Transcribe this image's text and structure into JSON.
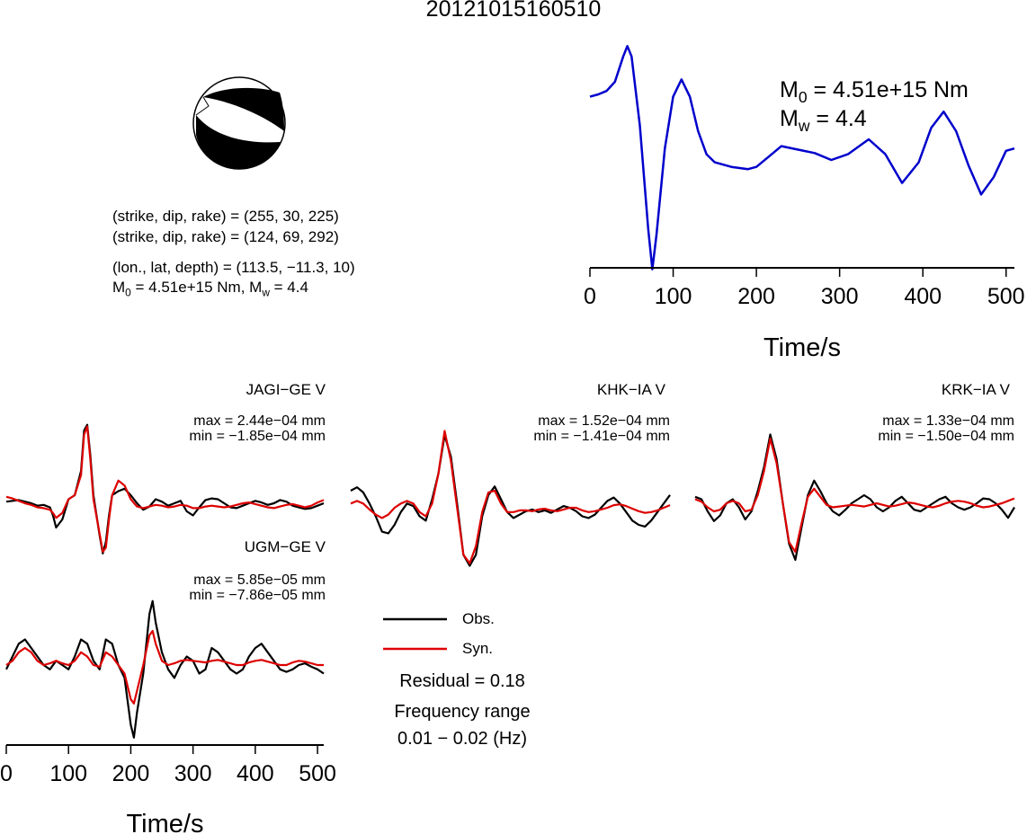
{
  "title": "20121015160510",
  "source_info": {
    "line1": "(strike, dip, rake) = (255, 30, 225)",
    "line2": "(strike, dip, rake) = (124, 69, 292)",
    "line3": "(lon., lat, depth) = (113.5, −11.3, 10)",
    "m0_label": "M",
    "m0_sub": "0",
    "m0_text": " = 4.51e+15 Nm, M",
    "mw_sub": "w",
    "mw_text": " = 4.4"
  },
  "stf_panel": {
    "m0_label": "M",
    "m0_sub": "0",
    "m0_value": " = 4.51e+15 Nm",
    "mw_label": "M",
    "mw_sub": "w",
    "mw_value": " = 4.4"
  },
  "legend": {
    "obs": "Obs.",
    "syn": "Syn.",
    "residual": "Residual = 0.18",
    "freq_label": "Frequency range",
    "freq_value": "0.01 − 0.02 (Hz)"
  },
  "colors": {
    "obs": "#000000",
    "syn": "#dd0000",
    "stf": "#0000cc",
    "beachball_fill": "#000000"
  },
  "chart_data": [
    {
      "type": "line",
      "name": "source-time-function",
      "xlabel": "Time/s",
      "xlim": [
        0,
        510
      ],
      "xticks": [
        0,
        100,
        200,
        300,
        400,
        500
      ],
      "x": [
        0,
        10,
        20,
        30,
        40,
        45,
        50,
        60,
        70,
        75,
        80,
        90,
        100,
        110,
        120,
        130,
        140,
        150,
        170,
        190,
        200,
        215,
        230,
        250,
        270,
        290,
        310,
        335,
        355,
        375,
        395,
        410,
        425,
        440,
        455,
        470,
        485,
        500,
        510
      ],
      "y": [
        0.55,
        0.57,
        0.6,
        0.68,
        0.9,
        0.99,
        0.9,
        0.3,
        -0.6,
        -0.95,
        -0.65,
        0.1,
        0.55,
        0.7,
        0.55,
        0.25,
        0.05,
        -0.02,
        -0.06,
        -0.08,
        -0.06,
        0.03,
        0.12,
        0.09,
        0.06,
        0.0,
        0.05,
        0.18,
        0.05,
        -0.2,
        -0.02,
        0.28,
        0.42,
        0.25,
        -0.05,
        -0.3,
        -0.15,
        0.08,
        0.1
      ]
    },
    {
      "type": "line",
      "station": "JAGI−GE V",
      "max": "max = 2.44e−04 mm",
      "min": "min = −1.85e−04 mm",
      "x": [
        0,
        10,
        20,
        30,
        40,
        50,
        60,
        70,
        75,
        80,
        90,
        100,
        110,
        120,
        125,
        130,
        135,
        140,
        150,
        155,
        160,
        165,
        170,
        180,
        190,
        200,
        210,
        220,
        230,
        240,
        250,
        260,
        270,
        280,
        290,
        300,
        310,
        320,
        330,
        340,
        350,
        360,
        370,
        380,
        390,
        400,
        410,
        420,
        430,
        440,
        450,
        460,
        470,
        480,
        490,
        500,
        510
      ],
      "series": [
        {
          "name": "Obs.",
          "values": [
            0.02,
            0.03,
            0.04,
            0.02,
            0.0,
            -0.03,
            -0.02,
            -0.05,
            -0.15,
            -0.3,
            -0.2,
            0.05,
            0.1,
            0.4,
            0.9,
            0.97,
            0.6,
            0.1,
            -0.4,
            -0.62,
            -0.48,
            -0.15,
            0.1,
            0.15,
            0.18,
            0.1,
            0.0,
            -0.08,
            -0.04,
            0.05,
            0.02,
            -0.03,
            0.0,
            0.03,
            -0.1,
            -0.15,
            -0.05,
            0.04,
            0.06,
            0.05,
            0.0,
            -0.05,
            -0.06,
            -0.03,
            0.0,
            0.03,
            0.01,
            -0.02,
            0.0,
            0.04,
            0.02,
            -0.03,
            -0.05,
            -0.07,
            -0.06,
            -0.03,
            0.0
          ]
        },
        {
          "name": "Syn.",
          "values": [
            0.08,
            0.06,
            0.03,
            0.0,
            -0.02,
            -0.05,
            -0.06,
            -0.08,
            -0.12,
            -0.18,
            -0.12,
            0.05,
            0.1,
            0.35,
            0.85,
            0.95,
            0.55,
            0.05,
            -0.38,
            -0.6,
            -0.55,
            -0.2,
            0.1,
            0.28,
            0.22,
            0.05,
            -0.04,
            -0.06,
            -0.04,
            -0.02,
            -0.03,
            -0.05,
            -0.04,
            -0.02,
            -0.03,
            -0.06,
            -0.06,
            -0.04,
            -0.03,
            -0.04,
            -0.05,
            -0.04,
            -0.02,
            0.0,
            0.01,
            -0.01,
            -0.03,
            -0.05,
            -0.06,
            -0.04,
            -0.02,
            -0.01,
            -0.03,
            -0.05,
            -0.03,
            0.01,
            0.04
          ]
        }
      ]
    },
    {
      "type": "line",
      "station": "KHK−IA V",
      "max": "max = 1.52e−04 mm",
      "min": "min = −1.41e−04 mm",
      "x": [
        0,
        10,
        20,
        30,
        40,
        50,
        60,
        70,
        80,
        90,
        100,
        110,
        120,
        130,
        140,
        150,
        160,
        170,
        180,
        190,
        200,
        210,
        220,
        230,
        240,
        250,
        260,
        270,
        280,
        290,
        300,
        310,
        320,
        330,
        340,
        350,
        360,
        370,
        380,
        390,
        400,
        410,
        420,
        430,
        440,
        450,
        460,
        470,
        480,
        490,
        500,
        510
      ],
      "series": [
        {
          "name": "Obs.",
          "values": [
            0.2,
            0.24,
            0.18,
            0.05,
            -0.1,
            -0.28,
            -0.3,
            -0.2,
            -0.05,
            0.05,
            0.02,
            -0.1,
            -0.15,
            0.1,
            0.4,
            0.85,
            0.6,
            0.05,
            -0.55,
            -0.68,
            -0.55,
            -0.1,
            0.15,
            0.25,
            0.1,
            -0.05,
            -0.12,
            -0.08,
            -0.04,
            -0.02,
            -0.05,
            -0.03,
            -0.06,
            -0.02,
            0.02,
            0.0,
            -0.04,
            -0.1,
            -0.12,
            -0.08,
            0.0,
            0.08,
            0.12,
            0.05,
            -0.05,
            -0.15,
            -0.2,
            -0.22,
            -0.15,
            -0.05,
            0.05,
            0.15
          ]
        },
        {
          "name": "Syn.",
          "values": [
            0.05,
            0.08,
            0.05,
            -0.02,
            -0.08,
            -0.12,
            -0.08,
            0.0,
            0.05,
            0.08,
            0.05,
            -0.05,
            -0.1,
            0.05,
            0.4,
            0.9,
            0.55,
            0.0,
            -0.55,
            -0.65,
            -0.45,
            -0.05,
            0.18,
            0.2,
            0.05,
            -0.05,
            -0.05,
            -0.03,
            -0.03,
            -0.04,
            -0.02,
            -0.01,
            -0.03,
            -0.04,
            -0.02,
            0.0,
            0.0,
            -0.03,
            -0.05,
            -0.04,
            -0.02,
            0.0,
            0.03,
            0.04,
            0.02,
            -0.01,
            -0.04,
            -0.06,
            -0.05,
            -0.03,
            0.0,
            0.03
          ]
        }
      ]
    },
    {
      "type": "line",
      "station": "KRK−IA V",
      "max": "max = 1.33e−04 mm",
      "min": "min = −1.50e−04 mm",
      "x": [
        0,
        10,
        20,
        30,
        40,
        50,
        60,
        70,
        80,
        90,
        100,
        110,
        120,
        130,
        140,
        150,
        160,
        170,
        180,
        190,
        200,
        210,
        220,
        230,
        240,
        250,
        260,
        270,
        280,
        290,
        300,
        310,
        320,
        330,
        340,
        350,
        360,
        370,
        380,
        390,
        400,
        410,
        420,
        430,
        440,
        450,
        460,
        470,
        480,
        490,
        500,
        510
      ],
      "series": [
        {
          "name": "Obs.",
          "values": [
            0.08,
            0.05,
            -0.1,
            -0.22,
            -0.15,
            0.0,
            0.05,
            -0.05,
            -0.2,
            -0.1,
            0.15,
            0.45,
            0.85,
            0.55,
            0.0,
            -0.5,
            -0.7,
            -0.3,
            0.1,
            0.28,
            0.15,
            0.0,
            -0.1,
            -0.15,
            -0.08,
            0.0,
            0.05,
            0.1,
            0.05,
            -0.05,
            -0.1,
            -0.05,
            0.03,
            0.08,
            0.0,
            -0.08,
            -0.1,
            -0.05,
            0.0,
            0.05,
            0.08,
            0.0,
            -0.05,
            -0.08,
            -0.05,
            0.0,
            0.06,
            0.05,
            0.0,
            -0.08,
            -0.18,
            -0.05
          ]
        },
        {
          "name": "Syn.",
          "values": [
            0.05,
            0.02,
            -0.05,
            -0.1,
            -0.08,
            0.0,
            0.03,
            0.0,
            -0.1,
            -0.08,
            0.1,
            0.4,
            0.8,
            0.5,
            0.0,
            -0.48,
            -0.6,
            -0.25,
            0.08,
            0.18,
            0.08,
            -0.02,
            -0.05,
            -0.04,
            -0.03,
            -0.02,
            -0.03,
            -0.04,
            -0.02,
            0.0,
            -0.02,
            -0.04,
            -0.03,
            -0.01,
            0.01,
            0.0,
            -0.02,
            -0.04,
            -0.05,
            -0.03,
            0.0,
            0.02,
            0.03,
            0.02,
            0.0,
            -0.03,
            -0.05,
            -0.04,
            -0.02,
            0.0,
            0.03,
            0.06
          ]
        }
      ]
    },
    {
      "type": "line",
      "station": "UGM−GE V",
      "max": "max = 5.85e−05 mm",
      "min": "min = −7.86e−05 mm",
      "xlabel": "Time/s",
      "xlim": [
        0,
        510
      ],
      "xticks": [
        0,
        100,
        200,
        300,
        400,
        500
      ],
      "x": [
        0,
        10,
        20,
        30,
        40,
        50,
        60,
        70,
        80,
        90,
        100,
        110,
        120,
        130,
        140,
        150,
        160,
        170,
        180,
        190,
        200,
        205,
        210,
        220,
        230,
        235,
        240,
        250,
        260,
        270,
        280,
        290,
        300,
        310,
        320,
        330,
        340,
        350,
        360,
        370,
        380,
        390,
        400,
        410,
        420,
        430,
        440,
        450,
        460,
        470,
        480,
        490,
        500,
        510
      ],
      "series": [
        {
          "name": "Obs.",
          "values": [
            -0.05,
            0.1,
            0.25,
            0.3,
            0.2,
            0.1,
            0.0,
            -0.05,
            0.05,
            0.0,
            -0.05,
            0.1,
            0.3,
            0.25,
            0.05,
            -0.05,
            0.3,
            0.25,
            0.0,
            -0.15,
            -0.7,
            -0.85,
            -0.55,
            -0.1,
            0.6,
            0.75,
            0.5,
            0.15,
            -0.05,
            -0.15,
            0.0,
            0.1,
            0.05,
            -0.1,
            -0.05,
            0.2,
            0.15,
            0.05,
            -0.05,
            -0.1,
            -0.05,
            0.1,
            0.2,
            0.25,
            0.15,
            0.05,
            -0.05,
            -0.08,
            -0.05,
            0.0,
            0.02,
            -0.02,
            -0.05,
            -0.1
          ]
        },
        {
          "name": "Syn.",
          "values": [
            0.0,
            0.05,
            0.15,
            0.2,
            0.15,
            0.05,
            0.0,
            0.02,
            0.05,
            0.02,
            0.0,
            0.05,
            0.15,
            0.1,
            0.0,
            -0.02,
            0.15,
            0.1,
            0.0,
            -0.1,
            -0.4,
            -0.45,
            -0.3,
            0.0,
            0.35,
            0.4,
            0.25,
            0.05,
            0.0,
            0.02,
            0.05,
            0.06,
            0.05,
            0.04,
            0.03,
            0.05,
            0.06,
            0.04,
            0.02,
            0.0,
            0.0,
            0.03,
            0.05,
            0.06,
            0.04,
            0.02,
            0.0,
            0.0,
            0.03,
            0.05,
            0.04,
            0.02,
            0.0,
            0.0
          ]
        }
      ]
    }
  ]
}
